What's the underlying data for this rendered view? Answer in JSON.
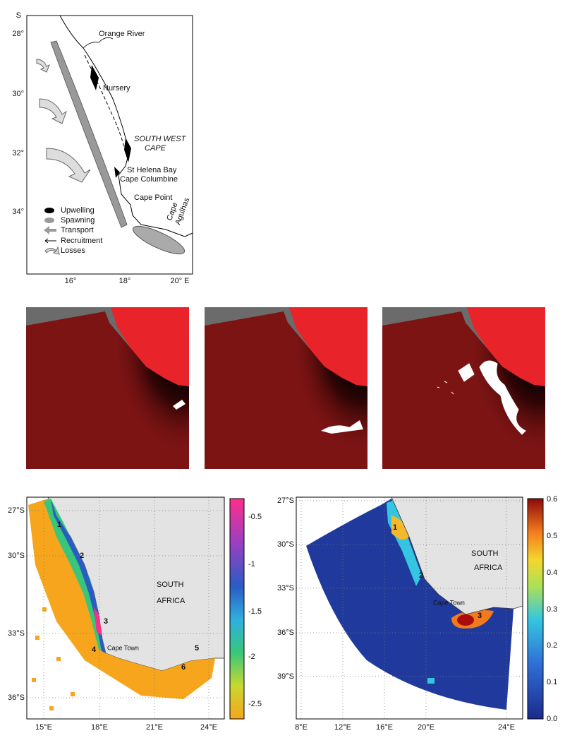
{
  "top_map": {
    "lat_unit": "S",
    "lat_labels": [
      "28°",
      "30°",
      "32°",
      "34°"
    ],
    "lon_labels": [
      "16°",
      "18°",
      "20°  E"
    ],
    "places": {
      "orange_river": "Orange River",
      "nursery": "Nursery",
      "region_1": "SOUTH WEST",
      "region_2": "CAPE",
      "st_helena": "St Helena Bay",
      "cape_columbine": "Cape Columbine",
      "cape_point": "Cape Point",
      "cape_agulhas_1": "Cape",
      "cape_agulhas_2": "Agulhas"
    },
    "legend": [
      "Upwelling",
      "Spawning",
      "Transport",
      "Recruitment",
      "Losses"
    ]
  },
  "left_map": {
    "lat_labels": [
      "27°S",
      "30°S",
      "33°S",
      "36°S"
    ],
    "lon_labels": [
      "15°E",
      "18°E",
      "21°E",
      "24°E"
    ],
    "country_1": "SOUTH",
    "country_2": "AFRICA",
    "city": "Cape Town",
    "markers": [
      "1",
      "2",
      "3",
      "4",
      "5",
      "6"
    ],
    "colorbar_labels": [
      "-0.5",
      "-1",
      "-1.5",
      "-2",
      "-2.5"
    ]
  },
  "right_map": {
    "lat_labels": [
      "27°S",
      "30°S",
      "33°S",
      "36°S",
      "39°S"
    ],
    "lon_labels": [
      "8°E",
      "12°E",
      "16°E",
      "20°E",
      "24°E"
    ],
    "country_1": "SOUTH",
    "country_2": "AFRICA",
    "city": "Cape Town",
    "markers": [
      "1",
      "2",
      "3"
    ],
    "colorbar_labels": [
      "0.6",
      "0.5",
      "0.4",
      "0.3",
      "0.2",
      "0.1",
      "0.0"
    ]
  }
}
